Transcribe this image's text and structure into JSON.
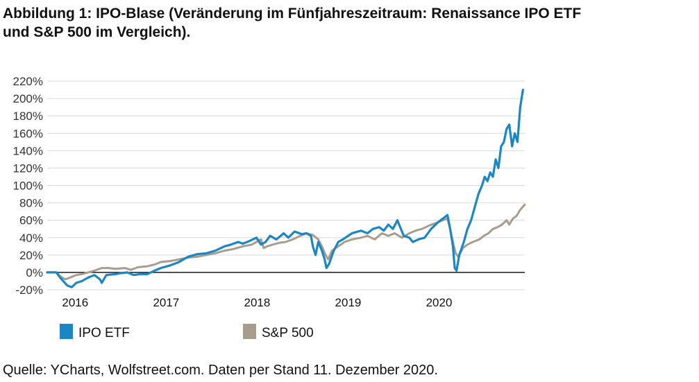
{
  "figure": {
    "title_line1": "Abbildung 1: IPO-Blase (Veränderung im Fünfjahreszeitraum: Renaissance IPO ETF",
    "title_line2": "und S&P 500 im Vergleich).",
    "source": "Quelle: YCharts, Wolfstreet.com. Daten per Stand 11. Dezember 2020."
  },
  "chart_data": {
    "type": "line",
    "title": "Abbildung 1: IPO-Blase (Veränderung im Fünfjahreszeitraum: Renaissance IPO ETF und S&P 500 im Vergleich).",
    "xlabel": "",
    "ylabel": "",
    "x_ticks": [
      {
        "label": "2016",
        "x": 2016.0
      },
      {
        "label": "2017",
        "x": 2017.0
      },
      {
        "label": "2018",
        "x": 2018.0
      },
      {
        "label": "2019",
        "x": 2019.0
      },
      {
        "label": "2020",
        "x": 2020.0
      }
    ],
    "y_ticks": [
      "220%",
      "200%",
      "180%",
      "160%",
      "140%",
      "120%",
      "100%",
      "80%",
      "60%",
      "40%",
      "20%",
      "0%",
      "-20%"
    ],
    "y_tick_values": [
      220,
      200,
      180,
      160,
      140,
      120,
      100,
      80,
      60,
      40,
      20,
      0,
      -20
    ],
    "xlim": [
      2015.7,
      2020.95
    ],
    "ylim": [
      -20,
      225
    ],
    "grid": "horizontal",
    "legend_position": "bottom",
    "series": [
      {
        "name": "IPO ETF",
        "color": "#1a87c4",
        "points": [
          [
            2015.7,
            0
          ],
          [
            2015.8,
            0
          ],
          [
            2015.85,
            -7
          ],
          [
            2015.92,
            -15
          ],
          [
            2015.97,
            -17
          ],
          [
            2016.02,
            -12
          ],
          [
            2016.08,
            -10
          ],
          [
            2016.15,
            -6
          ],
          [
            2016.22,
            -3
          ],
          [
            2016.28,
            -8
          ],
          [
            2016.3,
            -12
          ],
          [
            2016.35,
            -3
          ],
          [
            2016.45,
            -2
          ],
          [
            2016.5,
            -1
          ],
          [
            2016.58,
            0
          ],
          [
            2016.65,
            -3
          ],
          [
            2016.72,
            -2
          ],
          [
            2016.8,
            -2
          ],
          [
            2016.88,
            2
          ],
          [
            2016.95,
            5
          ],
          [
            2017.05,
            8
          ],
          [
            2017.15,
            12
          ],
          [
            2017.25,
            18
          ],
          [
            2017.35,
            21
          ],
          [
            2017.45,
            22
          ],
          [
            2017.55,
            25
          ],
          [
            2017.65,
            30
          ],
          [
            2017.72,
            32
          ],
          [
            2017.8,
            35
          ],
          [
            2017.85,
            33
          ],
          [
            2017.92,
            36
          ],
          [
            2018.0,
            40
          ],
          [
            2018.05,
            32
          ],
          [
            2018.1,
            35
          ],
          [
            2018.15,
            42
          ],
          [
            2018.22,
            38
          ],
          [
            2018.3,
            45
          ],
          [
            2018.35,
            40
          ],
          [
            2018.42,
            47
          ],
          [
            2018.5,
            44
          ],
          [
            2018.55,
            45
          ],
          [
            2018.6,
            42
          ],
          [
            2018.62,
            30
          ],
          [
            2018.65,
            20
          ],
          [
            2018.68,
            35
          ],
          [
            2018.72,
            25
          ],
          [
            2018.75,
            15
          ],
          [
            2018.77,
            5
          ],
          [
            2018.8,
            10
          ],
          [
            2018.85,
            25
          ],
          [
            2018.9,
            35
          ],
          [
            2018.95,
            38
          ],
          [
            2019.05,
            45
          ],
          [
            2019.15,
            48
          ],
          [
            2019.22,
            45
          ],
          [
            2019.28,
            50
          ],
          [
            2019.35,
            52
          ],
          [
            2019.4,
            48
          ],
          [
            2019.45,
            55
          ],
          [
            2019.5,
            50
          ],
          [
            2019.55,
            60
          ],
          [
            2019.58,
            52
          ],
          [
            2019.62,
            42
          ],
          [
            2019.68,
            40
          ],
          [
            2019.72,
            35
          ],
          [
            2019.78,
            38
          ],
          [
            2019.85,
            40
          ],
          [
            2019.92,
            50
          ],
          [
            2020.0,
            58
          ],
          [
            2020.05,
            62
          ],
          [
            2020.1,
            66
          ],
          [
            2020.13,
            50
          ],
          [
            2020.16,
            30
          ],
          [
            2020.18,
            5
          ],
          [
            2020.2,
            2
          ],
          [
            2020.23,
            20
          ],
          [
            2020.28,
            35
          ],
          [
            2020.32,
            50
          ],
          [
            2020.36,
            60
          ],
          [
            2020.4,
            75
          ],
          [
            2020.44,
            90
          ],
          [
            2020.48,
            100
          ],
          [
            2020.51,
            110
          ],
          [
            2020.54,
            105
          ],
          [
            2020.57,
            115
          ],
          [
            2020.6,
            110
          ],
          [
            2020.63,
            130
          ],
          [
            2020.66,
            120
          ],
          [
            2020.69,
            145
          ],
          [
            2020.72,
            150
          ],
          [
            2020.75,
            165
          ],
          [
            2020.78,
            170
          ],
          [
            2020.81,
            145
          ],
          [
            2020.84,
            160
          ],
          [
            2020.87,
            150
          ],
          [
            2020.9,
            190
          ],
          [
            2020.93,
            210
          ]
        ]
      },
      {
        "name": "S&P 500",
        "color": "#a89c8d",
        "points": [
          [
            2015.7,
            0
          ],
          [
            2015.8,
            0
          ],
          [
            2015.85,
            -5
          ],
          [
            2015.9,
            -8
          ],
          [
            2015.95,
            -6
          ],
          [
            2016.02,
            -3
          ],
          [
            2016.08,
            -2
          ],
          [
            2016.15,
            0
          ],
          [
            2016.22,
            2
          ],
          [
            2016.3,
            5
          ],
          [
            2016.38,
            5
          ],
          [
            2016.45,
            4
          ],
          [
            2016.55,
            5
          ],
          [
            2016.62,
            3
          ],
          [
            2016.7,
            6
          ],
          [
            2016.8,
            7
          ],
          [
            2016.88,
            9
          ],
          [
            2016.95,
            12
          ],
          [
            2017.05,
            13
          ],
          [
            2017.15,
            15
          ],
          [
            2017.25,
            17
          ],
          [
            2017.35,
            18
          ],
          [
            2017.45,
            20
          ],
          [
            2017.55,
            22
          ],
          [
            2017.65,
            25
          ],
          [
            2017.75,
            27
          ],
          [
            2017.85,
            30
          ],
          [
            2017.95,
            32
          ],
          [
            2018.05,
            38
          ],
          [
            2018.08,
            28
          ],
          [
            2018.12,
            30
          ],
          [
            2018.18,
            32
          ],
          [
            2018.25,
            34
          ],
          [
            2018.32,
            35
          ],
          [
            2018.4,
            38
          ],
          [
            2018.48,
            42
          ],
          [
            2018.55,
            45
          ],
          [
            2018.62,
            43
          ],
          [
            2018.68,
            38
          ],
          [
            2018.72,
            30
          ],
          [
            2018.76,
            20
          ],
          [
            2018.79,
            15
          ],
          [
            2018.83,
            25
          ],
          [
            2018.9,
            30
          ],
          [
            2018.97,
            35
          ],
          [
            2019.05,
            38
          ],
          [
            2019.15,
            40
          ],
          [
            2019.22,
            42
          ],
          [
            2019.3,
            38
          ],
          [
            2019.38,
            45
          ],
          [
            2019.45,
            42
          ],
          [
            2019.52,
            45
          ],
          [
            2019.6,
            40
          ],
          [
            2019.68,
            45
          ],
          [
            2019.75,
            48
          ],
          [
            2019.82,
            50
          ],
          [
            2019.9,
            54
          ],
          [
            2019.98,
            57
          ],
          [
            2020.05,
            60
          ],
          [
            2020.1,
            62
          ],
          [
            2020.13,
            50
          ],
          [
            2020.16,
            35
          ],
          [
            2020.19,
            22
          ],
          [
            2020.22,
            18
          ],
          [
            2020.27,
            28
          ],
          [
            2020.32,
            32
          ],
          [
            2020.38,
            35
          ],
          [
            2020.45,
            38
          ],
          [
            2020.5,
            42
          ],
          [
            2020.55,
            45
          ],
          [
            2020.6,
            50
          ],
          [
            2020.65,
            52
          ],
          [
            2020.7,
            55
          ],
          [
            2020.75,
            60
          ],
          [
            2020.78,
            55
          ],
          [
            2020.82,
            62
          ],
          [
            2020.86,
            65
          ],
          [
            2020.9,
            72
          ],
          [
            2020.95,
            78
          ]
        ]
      }
    ]
  }
}
